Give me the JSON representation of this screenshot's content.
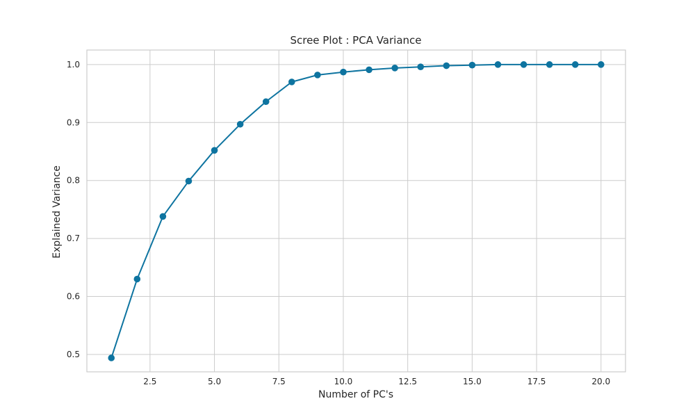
{
  "chart_data": {
    "type": "line",
    "title": "Scree Plot : PCA Variance",
    "xlabel": "Number of PC's",
    "ylabel": "Explained Variance",
    "xlim": [
      0.05,
      20.95
    ],
    "ylim": [
      0.47,
      1.025
    ],
    "grid": true,
    "x_ticks": [
      2.5,
      5.0,
      7.5,
      10.0,
      12.5,
      15.0,
      17.5,
      20.0
    ],
    "x_tick_labels": [
      "2.5",
      "5.0",
      "7.5",
      "10.0",
      "12.5",
      "15.0",
      "17.5",
      "20.0"
    ],
    "y_ticks": [
      0.5,
      0.6,
      0.7,
      0.8,
      0.9,
      1.0
    ],
    "y_tick_labels": [
      "0.5",
      "0.6",
      "0.7",
      "0.8",
      "0.9",
      "1.0"
    ],
    "series": [
      {
        "color": "#0e74a0",
        "marker": "circle",
        "x": [
          1,
          2,
          3,
          4,
          5,
          6,
          7,
          8,
          9,
          10,
          11,
          12,
          13,
          14,
          15,
          16,
          17,
          18,
          19,
          20
        ],
        "values": [
          0.494,
          0.63,
          0.738,
          0.799,
          0.852,
          0.897,
          0.936,
          0.97,
          0.982,
          0.987,
          0.991,
          0.994,
          0.996,
          0.998,
          0.999,
          1.0,
          1.0,
          1.0,
          1.0,
          1.0
        ]
      }
    ]
  }
}
